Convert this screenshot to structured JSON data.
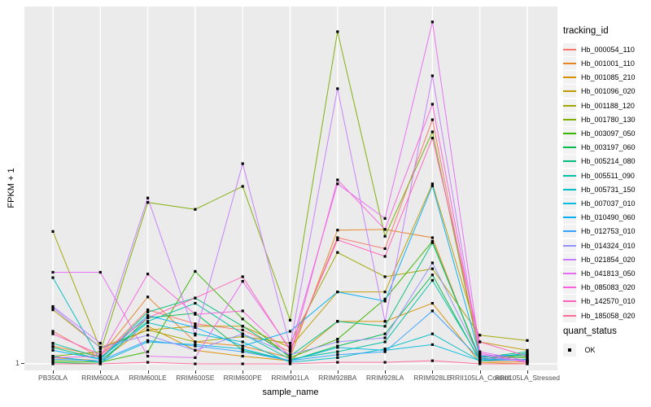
{
  "figure": {
    "background": "#FFFFFF",
    "panel_background": "#EBEBEB",
    "grid_color": "#FFFFFF",
    "tick_color": "#333333",
    "axis_text_color": "#4D4D4D",
    "point_color": "#000000"
  },
  "axes": {
    "x_title": "sample_name",
    "y_title": "FPKM + 1",
    "y_tick_labels": [
      "1"
    ]
  },
  "legend": {
    "tracking_title": "tracking_id",
    "quant_title": "quant_status",
    "quant_item_label": "OK"
  },
  "chart_data": {
    "type": "line",
    "scale_y": "log10",
    "title": "",
    "xlabel": "sample_name",
    "ylabel": "FPKM + 1",
    "y_axis_ticks": [
      1
    ],
    "ylim_log10": [
      0,
      0.99
    ],
    "grid": "ggplot-grey-panel-white-gridlines",
    "legend_position": "right",
    "point_marker": "small-black-square",
    "categories": [
      "PB350LA",
      "RRIM600LA",
      "RRIM600LE",
      "RRIM600SE",
      "RRIM600PE",
      "RRIM901LA",
      "RRIM928BA",
      "RRIM928LA",
      "RRIM928LE",
      "RRII105LA_Control",
      "RRII105LA_Stressed"
    ],
    "series": [
      {
        "name": "Hb_000054_110",
        "color": "#F8766D",
        "values": [
          1.23,
          1.04,
          1.41,
          1.29,
          1.24,
          1.08,
          2.23,
          2.08,
          4.72,
          1.04,
          1.02
        ]
      },
      {
        "name": "Hb_001001_110",
        "color": "#E88526",
        "values": [
          1.12,
          1.05,
          1.53,
          1.15,
          1.12,
          1.04,
          2.34,
          2.35,
          2.23,
          1.02,
          1.01
        ]
      },
      {
        "name": "Hb_001085_210",
        "color": "#D89000",
        "values": [
          1.04,
          1.02,
          1.27,
          1.09,
          1.05,
          1.02,
          1.31,
          1.31,
          1.47,
          1.01,
          1.0
        ]
      },
      {
        "name": "Hb_001096_020",
        "color": "#C09B00",
        "values": [
          1.41,
          1.11,
          1.24,
          1.27,
          1.27,
          1.11,
          1.58,
          1.58,
          3.14,
          1.15,
          1.09
        ]
      },
      {
        "name": "Hb_001188_120",
        "color": "#A3A500",
        "values": [
          2.32,
          1.1,
          1.24,
          1.15,
          1.19,
          1.14,
          2.03,
          1.74,
          1.83,
          1.2,
          1.16
        ]
      },
      {
        "name": "Hb_001780_130",
        "color": "#7CAE00",
        "values": [
          1.05,
          1.08,
          2.79,
          2.67,
          3.09,
          1.32,
          8.26,
          2.25,
          4.37,
          1.05,
          1.04
        ]
      },
      {
        "name": "Hb_003097_050",
        "color": "#39B600",
        "values": [
          1.02,
          1.01,
          1.08,
          1.8,
          1.33,
          1.04,
          1.17,
          1.51,
          2.18,
          1.03,
          1.06
        ]
      },
      {
        "name": "Hb_003197_060",
        "color": "#00BB4E",
        "values": [
          1.01,
          1.0,
          1.34,
          1.38,
          1.09,
          1.02,
          1.12,
          1.21,
          1.76,
          1.02,
          1.05
        ]
      },
      {
        "name": "Hb_005214_080",
        "color": "#00BF7D",
        "values": [
          1.11,
          1.03,
          1.39,
          1.52,
          1.27,
          1.05,
          1.31,
          1.27,
          2.16,
          1.04,
          1.08
        ]
      },
      {
        "name": "Hb_005511_090",
        "color": "#00C1A3",
        "values": [
          1.14,
          1.04,
          1.31,
          1.47,
          1.21,
          1.03,
          1.08,
          1.15,
          1.7,
          1.03,
          1.07
        ]
      },
      {
        "name": "Hb_005731_150",
        "color": "#00BFC4",
        "values": [
          1.73,
          1.02,
          1.3,
          1.21,
          1.15,
          1.01,
          1.04,
          1.1,
          1.21,
          1.02,
          1.03
        ]
      },
      {
        "name": "Hb_007037_010",
        "color": "#00BAE0",
        "values": [
          1.05,
          1.01,
          1.15,
          1.13,
          1.1,
          1.02,
          1.11,
          1.09,
          1.13,
          1.02,
          1.03
        ]
      },
      {
        "name": "Hb_010490_060",
        "color": "#00B0F6",
        "values": [
          1.09,
          1.03,
          1.36,
          1.26,
          1.12,
          1.23,
          1.58,
          1.49,
          3.1,
          1.05,
          1.06
        ]
      },
      {
        "name": "Hb_012753_010",
        "color": "#35A2FF",
        "values": [
          1.03,
          1.02,
          1.16,
          1.12,
          1.08,
          1.02,
          1.06,
          1.08,
          1.4,
          1.03,
          1.02
        ]
      },
      {
        "name": "Hb_014324_010",
        "color": "#9590FF",
        "values": [
          1.43,
          1.11,
          1.2,
          1.09,
          1.21,
          1.06,
          1.15,
          1.18,
          1.9,
          1.04,
          1.02
        ]
      },
      {
        "name": "Hb_021854_020",
        "color": "#C77CFF",
        "values": [
          1.44,
          1.14,
          2.87,
          1.2,
          3.57,
          1.12,
          5.75,
          1.31,
          6.24,
          1.06,
          1.01
        ]
      },
      {
        "name": "Hb_041813_050",
        "color": "#E76BF3",
        "values": [
          1.79,
          1.79,
          1.05,
          1.04,
          1.69,
          1.1,
          3.14,
          2.52,
          8.79,
          1.08,
          1.02
        ]
      },
      {
        "name": "Hb_085083_020",
        "color": "#FA62DB",
        "values": [
          1.04,
          1.05,
          1.77,
          1.37,
          1.4,
          1.05,
          3.22,
          2.35,
          5.21,
          1.07,
          1.01
        ]
      },
      {
        "name": "Hb_142570_010",
        "color": "#FF62BC",
        "values": [
          1.21,
          1.06,
          1.34,
          1.52,
          1.74,
          1.09,
          2.2,
          1.98,
          4.2,
          1.15,
          1.05
        ]
      },
      {
        "name": "Hb_185058_020",
        "color": "#FF6A98",
        "values": [
          1.0,
          1.0,
          1.01,
          1.0,
          1.0,
          1.0,
          1.01,
          1.01,
          1.02,
          1.0,
          1.0
        ]
      }
    ],
    "quant_status_series": [
      {
        "label": "OK",
        "marker": "black-square"
      }
    ]
  }
}
